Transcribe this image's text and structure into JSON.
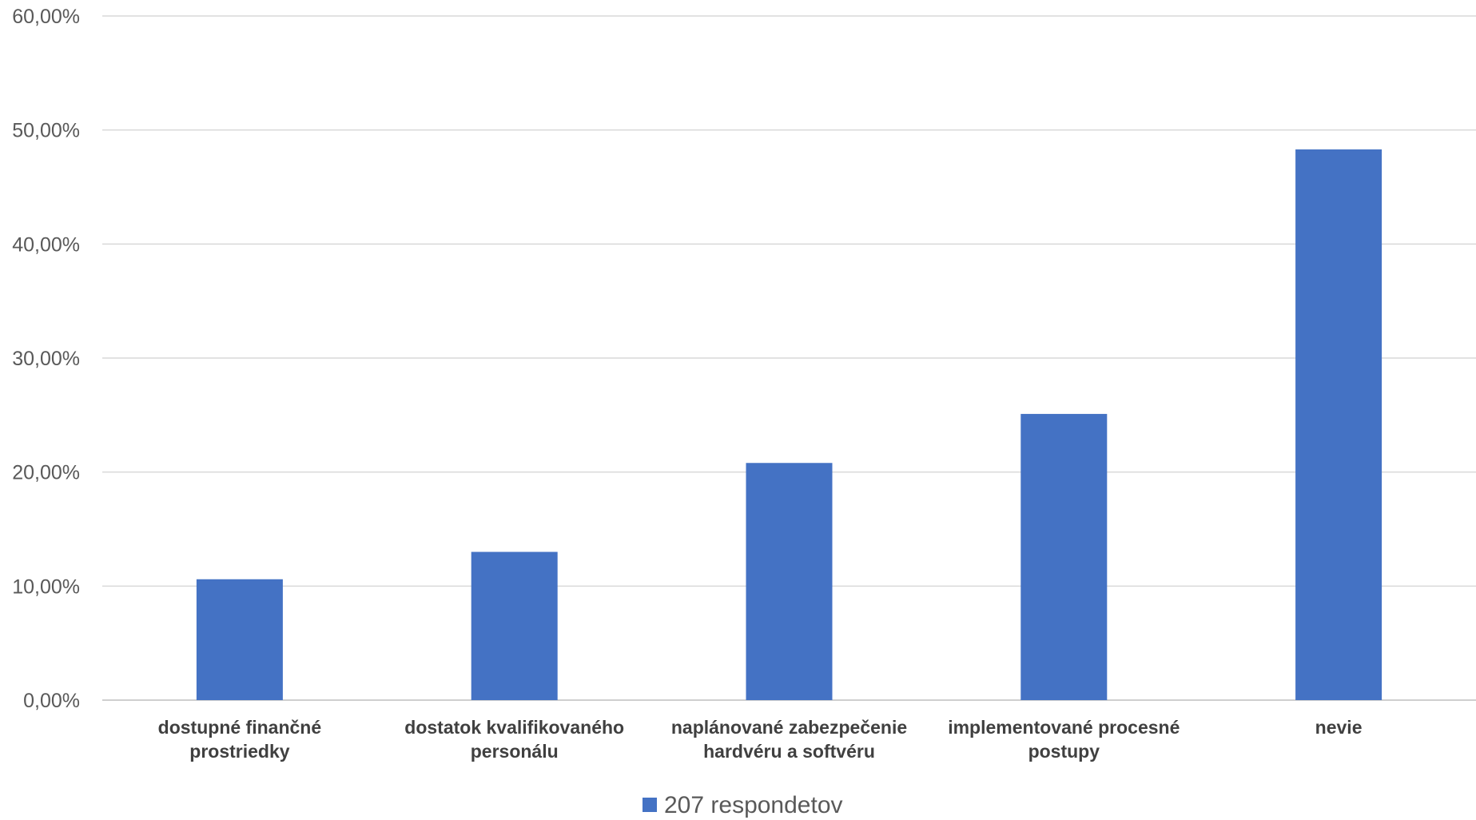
{
  "chart_data": {
    "type": "bar",
    "categories": [
      [
        "dostupné finančné",
        "prostriedky"
      ],
      [
        "dostatok kvalifikovaného",
        "personálu"
      ],
      [
        "naplánované zabezpečenie",
        "hardvéru a softvéru"
      ],
      [
        "implementované procesné",
        "postupy"
      ],
      [
        "nevie"
      ]
    ],
    "series": [
      {
        "name": "207 respondetov",
        "values": [
          10.6,
          13.0,
          20.8,
          25.1,
          48.3
        ],
        "color": "#4472c4"
      }
    ],
    "ylim": [
      0,
      60
    ],
    "yticks": [
      0,
      10,
      20,
      30,
      40,
      50,
      60
    ],
    "ytick_labels": [
      "0,00%",
      "10,00%",
      "20,00%",
      "30,00%",
      "40,00%",
      "50,00%",
      "60,00%"
    ],
    "grid": true,
    "legend_position": "bottom",
    "title": "",
    "xlabel": "",
    "ylabel": ""
  }
}
